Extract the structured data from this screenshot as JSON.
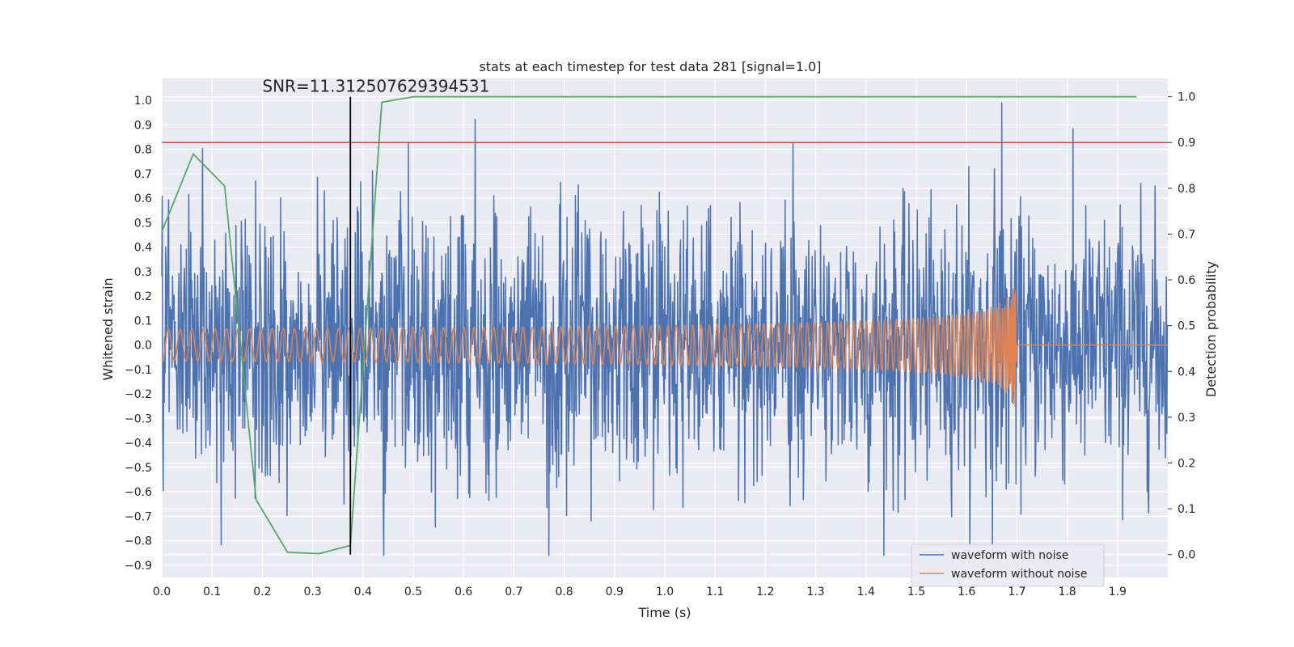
{
  "chart_data": {
    "type": "line",
    "title": "stats at each timestep for test data 281 [signal=1.0]",
    "xlabel": "Time (s)",
    "ylabel": "Whitened strain",
    "y2label": "Detection probability",
    "xlim": [
      0.0,
      2.0
    ],
    "ylim": [
      -0.95,
      1.09
    ],
    "y2lim": [
      -0.05,
      1.04
    ],
    "x_ticks": [
      "0.0",
      "0.1",
      "0.2",
      "0.3",
      "0.4",
      "0.5",
      "0.6",
      "0.7",
      "0.8",
      "0.9",
      "1.0",
      "1.1",
      "1.2",
      "1.3",
      "1.4",
      "1.5",
      "1.6",
      "1.7",
      "1.8",
      "1.9"
    ],
    "y_ticks": [
      "1.0",
      "0.9",
      "0.8",
      "0.7",
      "0.6",
      "0.5",
      "0.4",
      "0.3",
      "0.2",
      "0.1",
      "0.0",
      "-0.1",
      "-0.2",
      "-0.3",
      "-0.4",
      "-0.5",
      "-0.6",
      "-0.7",
      "-0.8",
      "-0.9"
    ],
    "y2_ticks": [
      "1.0",
      "0.9",
      "0.8",
      "0.7",
      "0.6",
      "0.5",
      "0.4",
      "0.3",
      "0.2",
      "0.1",
      "0.0"
    ],
    "grid": true,
    "legend_position": "bottom-right",
    "annotation": {
      "text": "SNR=11.312507629394531",
      "x": 0.2,
      "y": 1.0
    },
    "threshold_line": {
      "y2": 0.9,
      "color": "#c44e52"
    },
    "marker_line": {
      "x": 0.375,
      "y_from": 0.0,
      "y_to": 1.0,
      "color": "#000000"
    },
    "series": [
      {
        "name": "waveform with noise",
        "color": "#4c72b0",
        "samples": 2048,
        "sample_rate": 1024,
        "noise_std": 0.27,
        "peak_y": 1.0,
        "peak_x": 1.67
      },
      {
        "name": "waveform without noise",
        "color": "#dd8452",
        "chirp_end": 1.7,
        "amp_start": 0.065,
        "amp_end": 0.25,
        "post_merger_y": 0.0
      },
      {
        "color": "#55a868",
        "axis": "right",
        "x": [
          0.0,
          0.0625,
          0.125,
          0.1875,
          0.25,
          0.3125,
          0.375,
          0.4375,
          0.5,
          0.5625,
          0.625,
          0.6875,
          0.75,
          0.8125,
          0.875,
          0.9375,
          1.0,
          1.0625,
          1.125,
          1.1875,
          1.25,
          1.3125,
          1.375,
          1.4375,
          1.5,
          1.5625,
          1.625,
          1.6875,
          1.75,
          1.8125,
          1.875,
          1.9375
        ],
        "y": [
          0.705,
          0.875,
          0.805,
          0.12,
          0.005,
          0.002,
          0.02,
          0.988,
          1.0,
          1.0,
          1.0,
          1.0,
          1.0,
          1.0,
          1.0,
          1.0,
          1.0,
          1.0,
          1.0,
          1.0,
          1.0,
          1.0,
          1.0,
          1.0,
          1.0,
          1.0,
          1.0,
          1.0,
          1.0,
          1.0,
          1.0,
          1.0
        ]
      }
    ]
  }
}
